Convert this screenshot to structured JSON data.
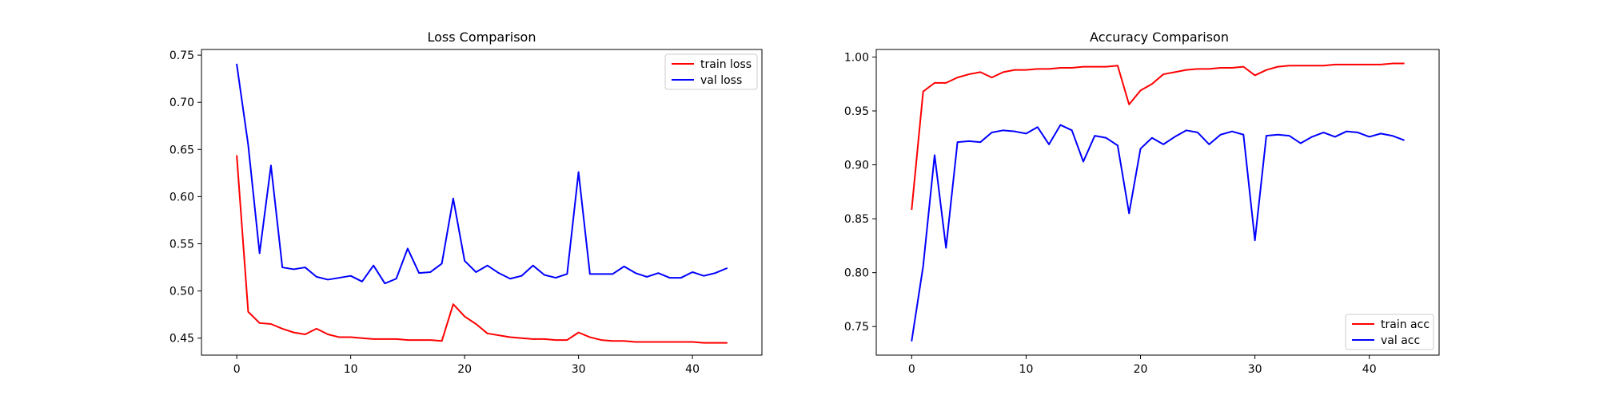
{
  "chart_data": [
    {
      "type": "line",
      "title": "Loss Comparison",
      "xlabel": "",
      "ylabel": "",
      "xlim": [
        -3.1,
        46.1
      ],
      "ylim": [
        0.432,
        0.756
      ],
      "xticks": [
        0,
        10,
        20,
        30,
        40
      ],
      "yticks": [
        0.45,
        0.5,
        0.55,
        0.6,
        0.65,
        0.7,
        0.75
      ],
      "yticks_labels": [
        "0.45",
        "0.50",
        "0.55",
        "0.60",
        "0.65",
        "0.70",
        "0.75"
      ],
      "grid": false,
      "legend": "top-right",
      "x": [
        0,
        1,
        2,
        3,
        4,
        5,
        6,
        7,
        8,
        9,
        10,
        11,
        12,
        13,
        14,
        15,
        16,
        17,
        18,
        19,
        20,
        21,
        22,
        23,
        24,
        25,
        26,
        27,
        28,
        29,
        30,
        31,
        32,
        33,
        34,
        35,
        36,
        37,
        38,
        39,
        40,
        41,
        42,
        43
      ],
      "series": [
        {
          "name": "train loss",
          "color": "#ff0000",
          "values": [
            0.643,
            0.478,
            0.466,
            0.465,
            0.46,
            0.456,
            0.454,
            0.46,
            0.454,
            0.451,
            0.451,
            0.45,
            0.449,
            0.449,
            0.449,
            0.448,
            0.448,
            0.448,
            0.447,
            0.486,
            0.473,
            0.465,
            0.455,
            0.453,
            0.451,
            0.45,
            0.449,
            0.449,
            0.448,
            0.448,
            0.456,
            0.451,
            0.448,
            0.447,
            0.447,
            0.446,
            0.446,
            0.446,
            0.446,
            0.446,
            0.446,
            0.445,
            0.445,
            0.445
          ]
        },
        {
          "name": "val loss",
          "color": "#0000ff",
          "values": [
            0.74,
            0.655,
            0.54,
            0.633,
            0.525,
            0.523,
            0.525,
            0.515,
            0.512,
            0.514,
            0.516,
            0.51,
            0.527,
            0.508,
            0.513,
            0.545,
            0.519,
            0.52,
            0.529,
            0.598,
            0.532,
            0.52,
            0.527,
            0.519,
            0.513,
            0.516,
            0.527,
            0.517,
            0.514,
            0.518,
            0.626,
            0.518,
            0.518,
            0.518,
            0.526,
            0.519,
            0.515,
            0.519,
            0.514,
            0.514,
            0.52,
            0.516,
            0.519,
            0.524
          ]
        }
      ]
    },
    {
      "type": "line",
      "title": "Accuracy Comparison",
      "xlabel": "",
      "ylabel": "",
      "xlim": [
        -3.1,
        46.1
      ],
      "ylim": [
        0.7235,
        1.007
      ],
      "xticks": [
        0,
        10,
        20,
        30,
        40
      ],
      "yticks": [
        0.75,
        0.8,
        0.85,
        0.9,
        0.95,
        1.0
      ],
      "yticks_labels": [
        "0.75",
        "0.80",
        "0.85",
        "0.90",
        "0.95",
        "1.00"
      ],
      "grid": false,
      "legend": "bottom-right",
      "x": [
        0,
        1,
        2,
        3,
        4,
        5,
        6,
        7,
        8,
        9,
        10,
        11,
        12,
        13,
        14,
        15,
        16,
        17,
        18,
        19,
        20,
        21,
        22,
        23,
        24,
        25,
        26,
        27,
        28,
        29,
        30,
        31,
        32,
        33,
        34,
        35,
        36,
        37,
        38,
        39,
        40,
        41,
        42,
        43
      ],
      "series": [
        {
          "name": "train acc",
          "color": "#ff0000",
          "values": [
            0.859,
            0.968,
            0.976,
            0.976,
            0.981,
            0.984,
            0.986,
            0.981,
            0.986,
            0.988,
            0.988,
            0.989,
            0.989,
            0.99,
            0.99,
            0.991,
            0.991,
            0.991,
            0.992,
            0.956,
            0.969,
            0.975,
            0.984,
            0.986,
            0.988,
            0.989,
            0.989,
            0.99,
            0.99,
            0.991,
            0.983,
            0.988,
            0.991,
            0.992,
            0.992,
            0.992,
            0.992,
            0.993,
            0.993,
            0.993,
            0.993,
            0.993,
            0.994,
            0.994
          ]
        },
        {
          "name": "val acc",
          "color": "#0000ff",
          "values": [
            0.737,
            0.806,
            0.909,
            0.823,
            0.921,
            0.922,
            0.921,
            0.93,
            0.932,
            0.931,
            0.929,
            0.935,
            0.919,
            0.937,
            0.932,
            0.903,
            0.927,
            0.925,
            0.918,
            0.855,
            0.915,
            0.925,
            0.919,
            0.926,
            0.932,
            0.93,
            0.919,
            0.928,
            0.931,
            0.928,
            0.83,
            0.927,
            0.928,
            0.927,
            0.92,
            0.926,
            0.93,
            0.926,
            0.931,
            0.93,
            0.926,
            0.929,
            0.927,
            0.923
          ]
        }
      ]
    }
  ]
}
